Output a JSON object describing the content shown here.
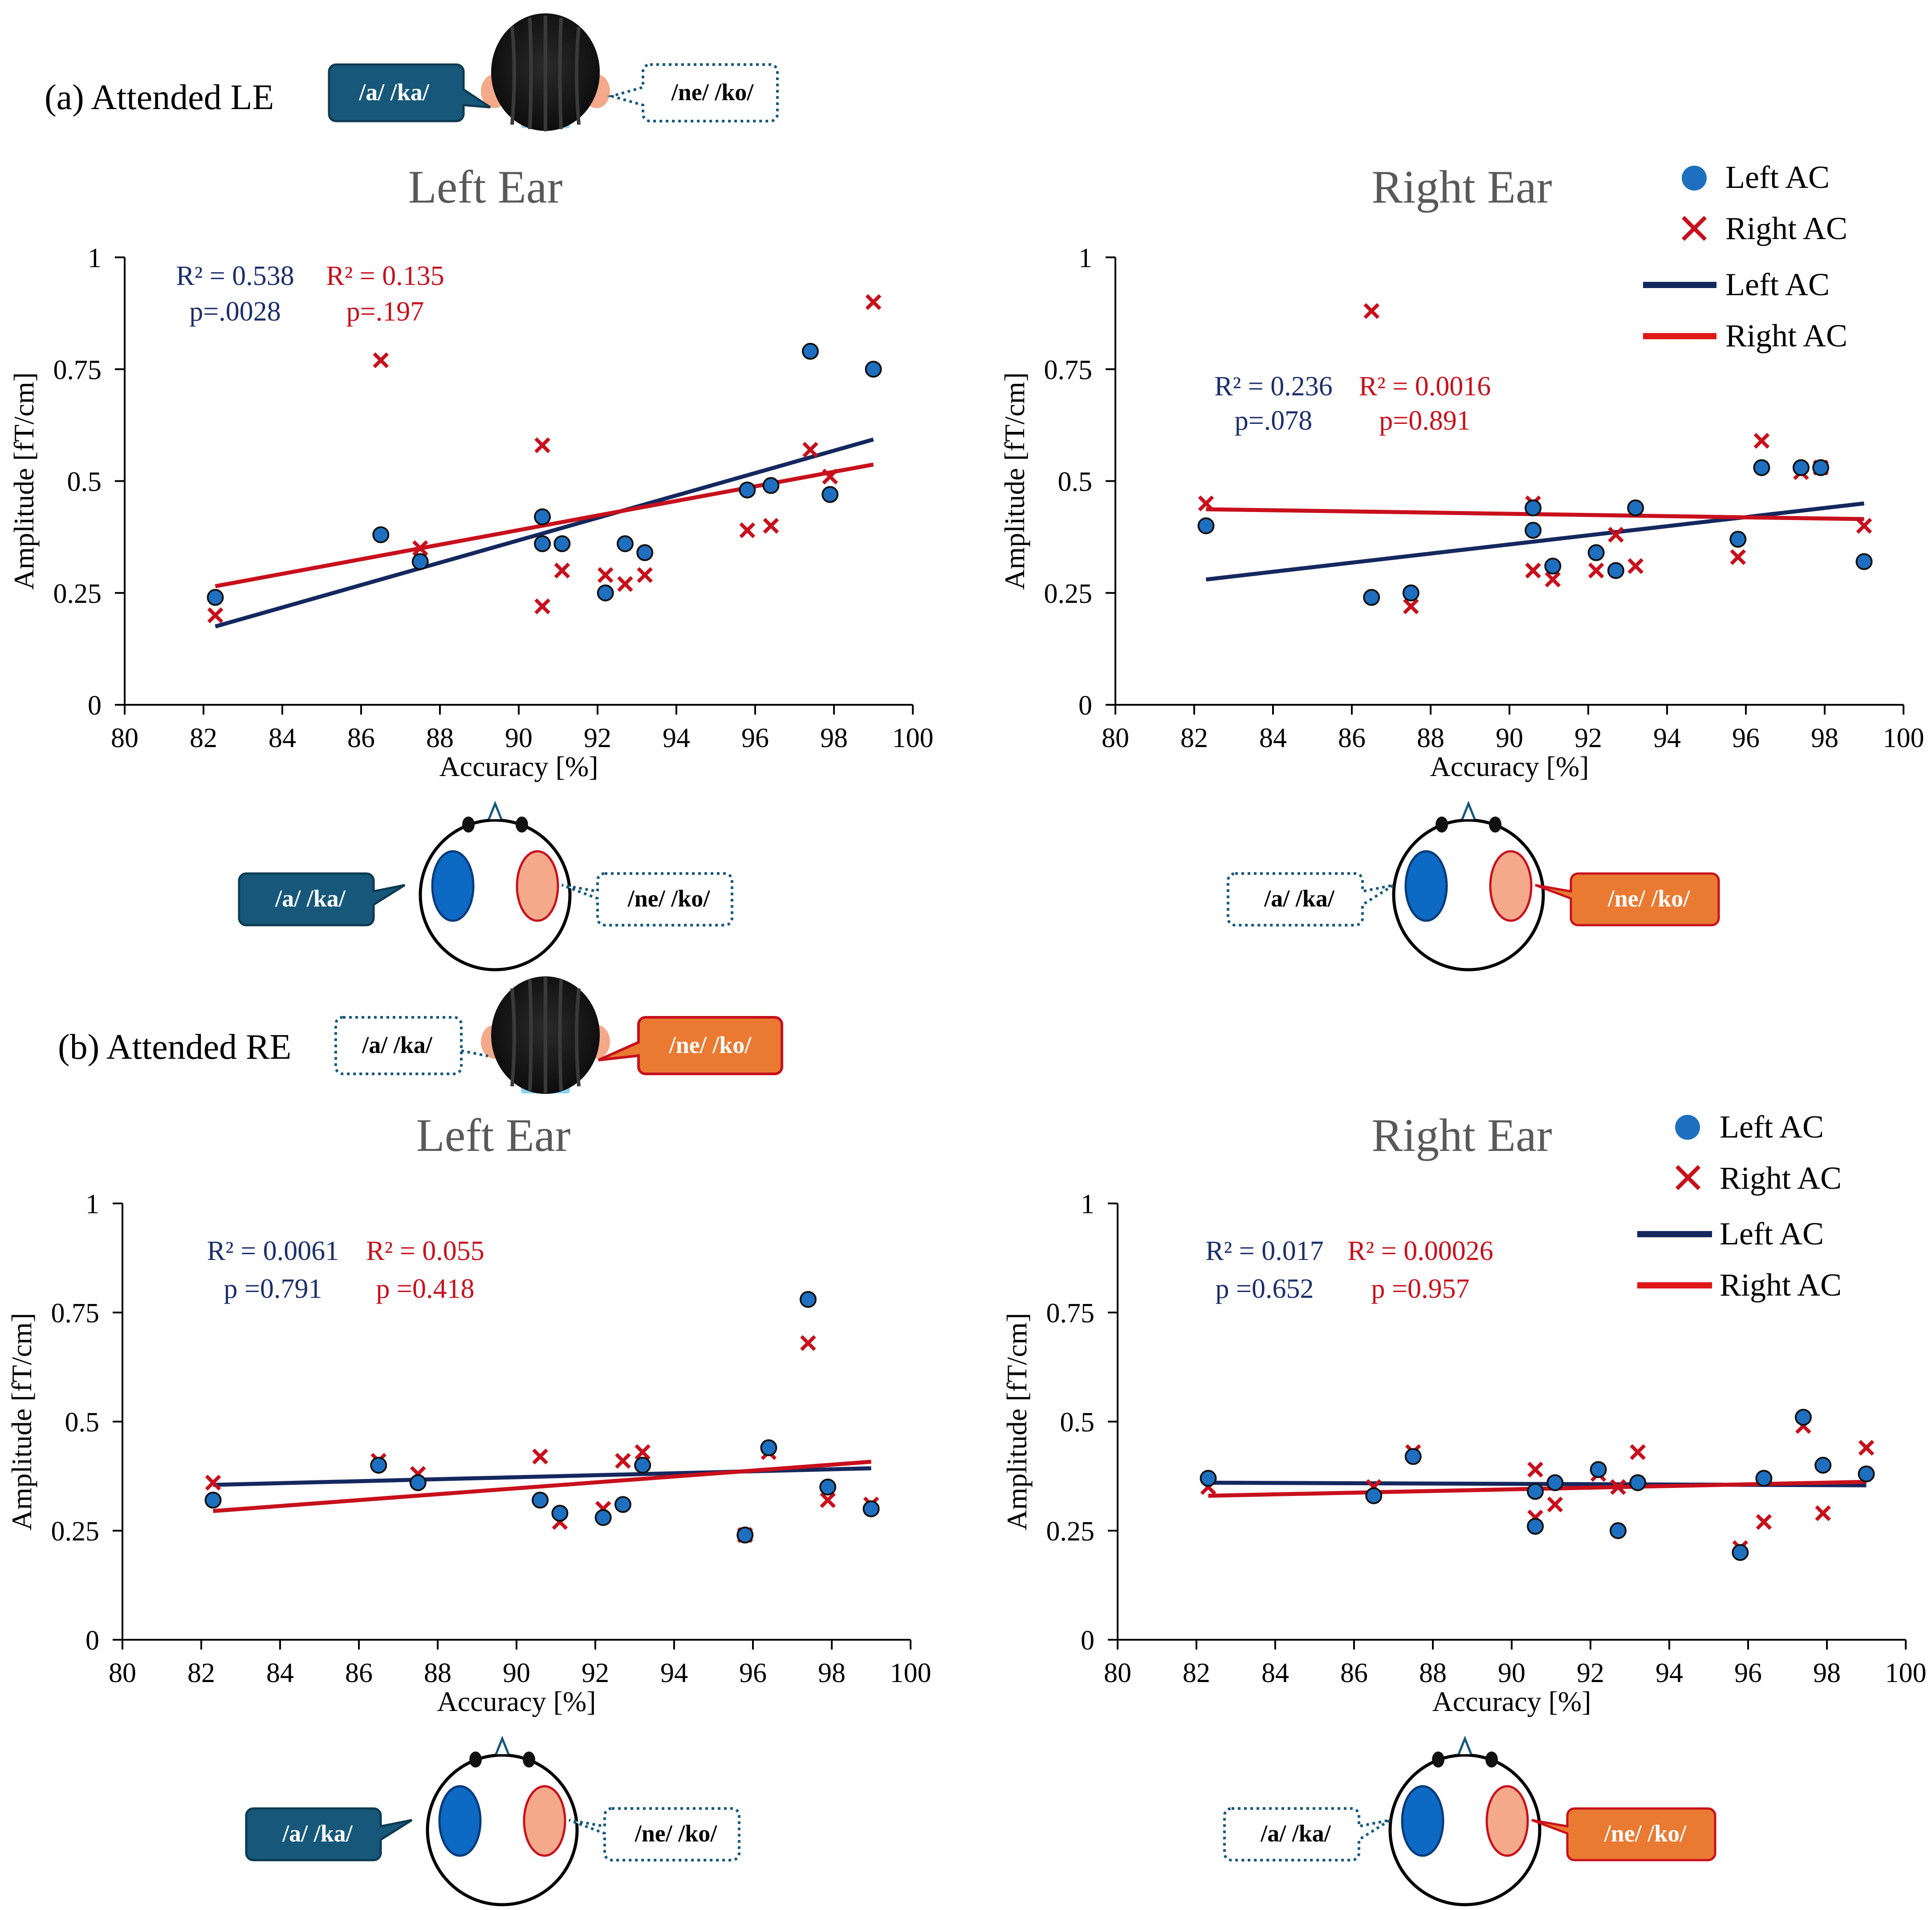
{
  "sections": [
    {
      "label": "(a) Attended LE",
      "left_bubble": "/a/ /ka/",
      "right_bubble": "/ne/ /ko/"
    },
    {
      "label": "(b) Attended RE",
      "left_bubble": "/a/ /ka/",
      "right_bubble": "/ne/ /ko/"
    }
  ],
  "speech": {
    "left": "/a/ /ka/",
    "right": "/ne/ /ko/"
  },
  "legend": {
    "points_left": "Left AC",
    "points_right": "Right AC",
    "line_left": "Left AC",
    "line_right": "Right AC"
  },
  "colors": {
    "left_ac_fill": "#1f6fc0",
    "left_ac_line": "#14285e",
    "right_ac": "#c8101c",
    "right_ac_line": "#e01818",
    "stat_left": "#1c2f6b",
    "stat_right": "#c8101c",
    "bubble_dark": "#17587a",
    "bubble_orange": "#ea7a32",
    "title_gray": "#595959"
  },
  "chart_data": [
    {
      "type": "scatter",
      "panel": "a-left",
      "title": "Left Ear",
      "xlabel": "Accuracy [%]",
      "ylabel": "Amplitude [fT/cm]",
      "xlim": [
        80,
        100
      ],
      "ylim": [
        0,
        1
      ],
      "xticks": [
        80,
        82,
        84,
        86,
        88,
        90,
        92,
        94,
        96,
        98,
        100
      ],
      "yticks": [
        0,
        0.25,
        0.5,
        0.75,
        1
      ],
      "ytick_labels": [
        "0",
        "0.25",
        "0.5",
        "0.75",
        "1"
      ],
      "stats": {
        "left_r2": "R² = 0.538",
        "left_p": "p=.0028",
        "right_r2": "R² = 0.135",
        "right_p": "p=.197"
      },
      "series": [
        {
          "name": "Left AC",
          "marker": "circle",
          "x": [
            82.3,
            86.5,
            87.5,
            90.6,
            90.6,
            91.1,
            92.2,
            92.7,
            93.2,
            95.8,
            96.4,
            97.4,
            97.9,
            99.0
          ],
          "y": [
            0.24,
            0.38,
            0.32,
            0.42,
            0.36,
            0.36,
            0.25,
            0.36,
            0.34,
            0.48,
            0.49,
            0.79,
            0.47,
            0.75
          ]
        },
        {
          "name": "Right AC",
          "marker": "x",
          "x": [
            82.3,
            86.5,
            87.5,
            90.6,
            90.6,
            91.1,
            92.2,
            92.7,
            93.2,
            95.8,
            96.4,
            97.4,
            97.9,
            99.0
          ],
          "y": [
            0.2,
            0.77,
            0.35,
            0.58,
            0.22,
            0.3,
            0.29,
            0.27,
            0.29,
            0.39,
            0.4,
            0.57,
            0.51,
            0.9
          ]
        }
      ],
      "trendlines": [
        {
          "name": "Left AC",
          "x": [
            82.3,
            99.0
          ],
          "y": [
            0.175,
            0.593
          ]
        },
        {
          "name": "Right AC",
          "x": [
            82.3,
            99.0
          ],
          "y": [
            0.265,
            0.537
          ]
        }
      ]
    },
    {
      "type": "scatter",
      "panel": "a-right",
      "title": "Right Ear",
      "xlabel": "Accuracy [%]",
      "ylabel": "Amplitude [fT/cm]",
      "xlim": [
        80,
        100
      ],
      "ylim": [
        0,
        1
      ],
      "xticks": [
        80,
        82,
        84,
        86,
        88,
        90,
        92,
        94,
        96,
        98,
        100
      ],
      "yticks": [
        0,
        0.25,
        0.5,
        0.75,
        1
      ],
      "ytick_labels": [
        "0",
        "0.25",
        "0.5",
        "0.75",
        "1"
      ],
      "stats": {
        "left_r2": "R² = 0.236",
        "left_p": "p=.078",
        "right_r2": "R² = 0.0016",
        "right_p": "p=0.891"
      },
      "series": [
        {
          "name": "Left AC",
          "marker": "circle",
          "x": [
            82.3,
            86.5,
            87.5,
            90.6,
            90.6,
            91.1,
            92.2,
            92.7,
            93.2,
            95.8,
            96.4,
            97.4,
            97.9,
            99.0
          ],
          "y": [
            0.4,
            0.24,
            0.25,
            0.44,
            0.39,
            0.31,
            0.34,
            0.3,
            0.44,
            0.37,
            0.53,
            0.53,
            0.53,
            0.32
          ]
        },
        {
          "name": "Right AC",
          "marker": "x",
          "x": [
            82.3,
            86.5,
            87.5,
            90.6,
            90.6,
            91.1,
            92.2,
            92.7,
            93.2,
            95.8,
            96.4,
            97.4,
            97.9,
            99.0
          ],
          "y": [
            0.45,
            0.88,
            0.22,
            0.45,
            0.3,
            0.28,
            0.3,
            0.38,
            0.31,
            0.33,
            0.59,
            0.52,
            0.53,
            0.4
          ]
        }
      ],
      "trendlines": [
        {
          "name": "Left AC",
          "x": [
            82.3,
            99.0
          ],
          "y": [
            0.28,
            0.45
          ]
        },
        {
          "name": "Right AC",
          "x": [
            82.3,
            99.0
          ],
          "y": [
            0.437,
            0.415
          ]
        }
      ]
    },
    {
      "type": "scatter",
      "panel": "b-left",
      "title": "Left Ear",
      "xlabel": "Accuracy [%]",
      "ylabel": "Amplitude [fT/cm]",
      "xlim": [
        80,
        100
      ],
      "ylim": [
        0,
        1
      ],
      "xticks": [
        80,
        82,
        84,
        86,
        88,
        90,
        92,
        94,
        96,
        98,
        100
      ],
      "yticks": [
        0,
        0.25,
        0.5,
        0.75,
        1
      ],
      "ytick_labels": [
        "0",
        "0.25",
        "0.5",
        "0.75",
        "1"
      ],
      "stats": {
        "left_r2": "R² = 0.0061",
        "left_p": "p =0.791",
        "right_r2": "R² = 0.055",
        "right_p": "p =0.418"
      },
      "series": [
        {
          "name": "Left AC",
          "marker": "circle",
          "x": [
            82.3,
            86.5,
            87.5,
            90.6,
            91.1,
            92.2,
            92.7,
            93.2,
            95.8,
            96.4,
            97.4,
            97.9,
            99.0
          ],
          "y": [
            0.32,
            0.4,
            0.36,
            0.32,
            0.29,
            0.28,
            0.31,
            0.4,
            0.24,
            0.44,
            0.78,
            0.35,
            0.3
          ]
        },
        {
          "name": "Right AC",
          "marker": "x",
          "x": [
            82.3,
            86.5,
            87.5,
            90.6,
            91.1,
            92.2,
            92.7,
            93.2,
            95.8,
            96.4,
            97.4,
            97.9,
            99.0
          ],
          "y": [
            0.36,
            0.41,
            0.38,
            0.42,
            0.27,
            0.3,
            0.41,
            0.43,
            0.24,
            0.43,
            0.68,
            0.32,
            0.31
          ]
        }
      ],
      "trendlines": [
        {
          "name": "Left AC",
          "x": [
            82.3,
            99.0
          ],
          "y": [
            0.355,
            0.393
          ]
        },
        {
          "name": "Right AC",
          "x": [
            82.3,
            99.0
          ],
          "y": [
            0.295,
            0.408
          ]
        }
      ]
    },
    {
      "type": "scatter",
      "panel": "b-right",
      "title": "Right Ear",
      "xlabel": "Accuracy [%]",
      "ylabel": "Amplitude [fT/cm]",
      "xlim": [
        80,
        100
      ],
      "ylim": [
        0,
        1
      ],
      "xticks": [
        80,
        82,
        84,
        86,
        88,
        90,
        92,
        94,
        96,
        98,
        100
      ],
      "yticks": [
        0,
        0.25,
        0.5,
        0.75,
        1
      ],
      "ytick_labels": [
        "0",
        "0.25",
        "0.5",
        "0.75",
        "1"
      ],
      "stats": {
        "left_r2": "R² = 0.017",
        "left_p": "p =0.652",
        "right_r2": "R² = 0.00026",
        "right_p": "p =0.957"
      },
      "series": [
        {
          "name": "Left AC",
          "marker": "circle",
          "x": [
            82.3,
            86.5,
            87.5,
            90.6,
            90.6,
            91.1,
            92.2,
            92.7,
            93.2,
            95.8,
            96.4,
            97.4,
            97.9,
            99.0
          ],
          "y": [
            0.37,
            0.33,
            0.42,
            0.34,
            0.26,
            0.36,
            0.39,
            0.25,
            0.36,
            0.2,
            0.37,
            0.51,
            0.4,
            0.38
          ]
        },
        {
          "name": "Right AC",
          "marker": "x",
          "x": [
            82.3,
            86.5,
            87.5,
            90.6,
            90.6,
            91.1,
            92.2,
            92.7,
            93.2,
            95.8,
            96.4,
            97.4,
            97.9,
            99.0
          ],
          "y": [
            0.35,
            0.35,
            0.43,
            0.39,
            0.28,
            0.31,
            0.38,
            0.35,
            0.43,
            0.21,
            0.27,
            0.49,
            0.29,
            0.44
          ]
        }
      ],
      "trendlines": [
        {
          "name": "Left AC",
          "x": [
            82.3,
            99.0
          ],
          "y": [
            0.36,
            0.354
          ]
        },
        {
          "name": "Right AC",
          "x": [
            82.3,
            99.0
          ],
          "y": [
            0.33,
            0.362
          ]
        }
      ]
    }
  ]
}
